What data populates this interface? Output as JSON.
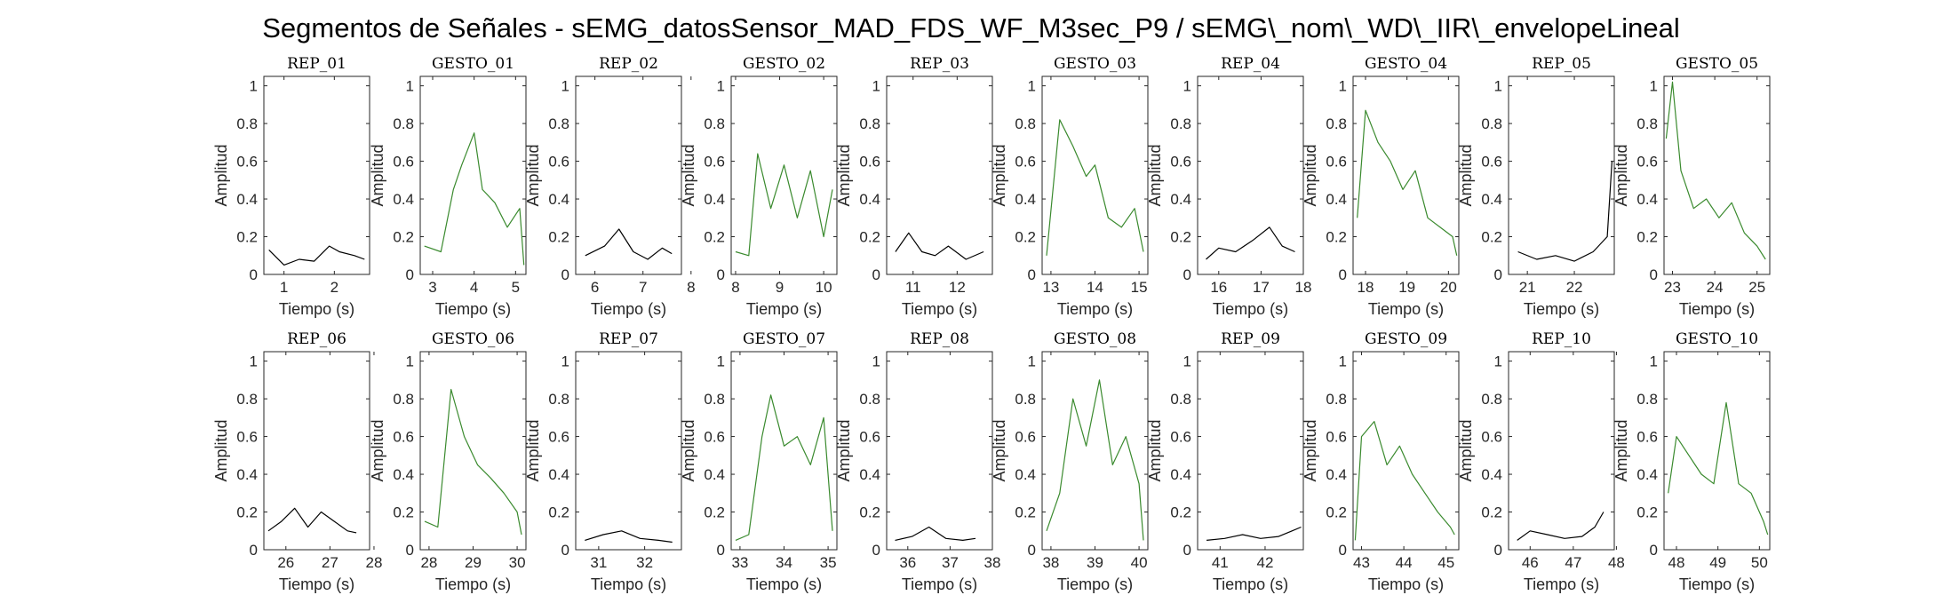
{
  "title": "Segmentos de Señales - sEMG_datosSensor_MAD_FDS_WF_M3sec_P9 / sEMG\\_nom\\_WD\\_IIR\\_envelopeLineal",
  "colors": {
    "rep": "#000000",
    "gesto": "#3a8a2e"
  },
  "chart_data": [
    {
      "title": "REP_01",
      "kind": "rep",
      "type": "line",
      "x": [
        0.7,
        1.0,
        1.3,
        1.6,
        1.9,
        2.1,
        2.4,
        2.6
      ],
      "values": [
        0.13,
        0.05,
        0.08,
        0.07,
        0.15,
        0.12,
        0.1,
        0.08
      ],
      "xlim": [
        0.6,
        2.7
      ],
      "ylim": [
        0,
        1.05
      ],
      "xticks": [
        1,
        2
      ],
      "yticks": [
        0,
        0.2,
        0.4,
        0.6,
        0.8,
        1
      ],
      "xlabel": "Tiempo (s)",
      "ylabel": "Amplitud"
    },
    {
      "title": "GESTO_01",
      "kind": "gesto",
      "type": "line",
      "x": [
        2.8,
        3.2,
        3.5,
        3.7,
        4.0,
        4.2,
        4.5,
        4.8,
        5.1,
        5.2
      ],
      "values": [
        0.15,
        0.12,
        0.45,
        0.58,
        0.75,
        0.45,
        0.38,
        0.25,
        0.35,
        0.05
      ],
      "xlim": [
        2.7,
        5.25
      ],
      "ylim": [
        0,
        1.05
      ],
      "xticks": [
        3,
        4,
        5
      ],
      "yticks": [
        0,
        0.2,
        0.4,
        0.6,
        0.8,
        1
      ],
      "xlabel": "Tiempo (s)",
      "ylabel": "Amplitud"
    },
    {
      "title": "REP_02",
      "kind": "rep",
      "type": "line",
      "x": [
        5.8,
        6.2,
        6.5,
        6.8,
        7.1,
        7.4,
        7.6
      ],
      "values": [
        0.1,
        0.15,
        0.24,
        0.12,
        0.08,
        0.14,
        0.11
      ],
      "xlim": [
        5.6,
        7.8
      ],
      "ylim": [
        0,
        1.05
      ],
      "xticks": [
        6,
        7,
        8
      ],
      "yticks": [
        0,
        0.2,
        0.4,
        0.6,
        0.8,
        1
      ],
      "xlabel": "Tiempo (s)",
      "ylabel": "Amplitud"
    },
    {
      "title": "GESTO_02",
      "kind": "gesto",
      "type": "line",
      "x": [
        8.0,
        8.3,
        8.5,
        8.8,
        9.1,
        9.4,
        9.7,
        10.0,
        10.2
      ],
      "values": [
        0.12,
        0.1,
        0.64,
        0.35,
        0.58,
        0.3,
        0.55,
        0.2,
        0.45
      ],
      "xlim": [
        7.9,
        10.3
      ],
      "ylim": [
        0,
        1.05
      ],
      "xticks": [
        8,
        9,
        10
      ],
      "yticks": [
        0,
        0.2,
        0.4,
        0.6,
        0.8,
        1
      ],
      "xlabel": "Tiempo (s)",
      "ylabel": "Amplitud"
    },
    {
      "title": "REP_03",
      "kind": "rep",
      "type": "line",
      "x": [
        10.6,
        10.9,
        11.2,
        11.5,
        11.8,
        12.2,
        12.6
      ],
      "values": [
        0.12,
        0.22,
        0.12,
        0.1,
        0.15,
        0.08,
        0.12
      ],
      "xlim": [
        10.4,
        12.8
      ],
      "ylim": [
        0,
        1.05
      ],
      "xticks": [
        11,
        12
      ],
      "yticks": [
        0,
        0.2,
        0.4,
        0.6,
        0.8,
        1
      ],
      "xlabel": "Tiempo (s)",
      "ylabel": "Amplitud"
    },
    {
      "title": "GESTO_03",
      "kind": "gesto",
      "type": "line",
      "x": [
        12.9,
        13.2,
        13.5,
        13.8,
        14.0,
        14.3,
        14.6,
        14.9,
        15.1
      ],
      "values": [
        0.1,
        0.82,
        0.68,
        0.52,
        0.58,
        0.3,
        0.25,
        0.35,
        0.12
      ],
      "xlim": [
        12.8,
        15.2
      ],
      "ylim": [
        0,
        1.05
      ],
      "xticks": [
        13,
        14,
        15
      ],
      "yticks": [
        0,
        0.2,
        0.4,
        0.6,
        0.8,
        1
      ],
      "xlabel": "Tiempo (s)",
      "ylabel": "Amplitud"
    },
    {
      "title": "REP_04",
      "kind": "rep",
      "type": "line",
      "x": [
        15.7,
        16.0,
        16.4,
        16.8,
        17.2,
        17.5,
        17.8
      ],
      "values": [
        0.08,
        0.14,
        0.12,
        0.18,
        0.25,
        0.15,
        0.12
      ],
      "xlim": [
        15.5,
        18.0
      ],
      "ylim": [
        0,
        1.05
      ],
      "xticks": [
        16,
        17,
        18
      ],
      "yticks": [
        0,
        0.2,
        0.4,
        0.6,
        0.8,
        1
      ],
      "xlabel": "Tiempo (s)",
      "ylabel": "Amplitud"
    },
    {
      "title": "GESTO_04",
      "kind": "gesto",
      "type": "line",
      "x": [
        17.8,
        18.0,
        18.3,
        18.6,
        18.9,
        19.2,
        19.5,
        19.8,
        20.1,
        20.2
      ],
      "values": [
        0.3,
        0.87,
        0.7,
        0.6,
        0.45,
        0.55,
        0.3,
        0.25,
        0.2,
        0.1
      ],
      "xlim": [
        17.7,
        20.25
      ],
      "ylim": [
        0,
        1.05
      ],
      "xticks": [
        18,
        19,
        20
      ],
      "yticks": [
        0,
        0.2,
        0.4,
        0.6,
        0.8,
        1
      ],
      "xlabel": "Tiempo (s)",
      "ylabel": "Amplitud"
    },
    {
      "title": "REP_05",
      "kind": "rep",
      "type": "line",
      "x": [
        20.8,
        21.2,
        21.6,
        22.0,
        22.4,
        22.7,
        22.8
      ],
      "values": [
        0.12,
        0.08,
        0.1,
        0.07,
        0.12,
        0.2,
        0.6
      ],
      "xlim": [
        20.6,
        22.85
      ],
      "ylim": [
        0,
        1.05
      ],
      "xticks": [
        21,
        22
      ],
      "yticks": [
        0,
        0.2,
        0.4,
        0.6,
        0.8,
        1
      ],
      "xlabel": "Tiempo (s)",
      "ylabel": "Amplitud"
    },
    {
      "title": "GESTO_05",
      "kind": "gesto",
      "type": "line",
      "x": [
        22.85,
        23.0,
        23.2,
        23.5,
        23.8,
        24.1,
        24.4,
        24.7,
        25.0,
        25.2
      ],
      "values": [
        0.72,
        1.02,
        0.55,
        0.35,
        0.4,
        0.3,
        0.38,
        0.22,
        0.15,
        0.08
      ],
      "xlim": [
        22.8,
        25.3
      ],
      "ylim": [
        0,
        1.05
      ],
      "xticks": [
        23,
        24,
        25
      ],
      "yticks": [
        0,
        0.2,
        0.4,
        0.6,
        0.8,
        1
      ],
      "xlabel": "Tiempo (s)",
      "ylabel": "Amplitud"
    },
    {
      "title": "REP_06",
      "kind": "rep",
      "type": "line",
      "x": [
        25.6,
        25.9,
        26.2,
        26.5,
        26.8,
        27.1,
        27.4,
        27.6
      ],
      "values": [
        0.1,
        0.15,
        0.22,
        0.12,
        0.2,
        0.15,
        0.1,
        0.09
      ],
      "xlim": [
        25.5,
        27.9
      ],
      "ylim": [
        0,
        1.05
      ],
      "xticks": [
        26,
        27,
        28
      ],
      "yticks": [
        0,
        0.2,
        0.4,
        0.6,
        0.8,
        1
      ],
      "xlabel": "Tiempo (s)",
      "ylabel": "Amplitud"
    },
    {
      "title": "GESTO_06",
      "kind": "gesto",
      "type": "line",
      "x": [
        27.9,
        28.2,
        28.5,
        28.8,
        29.1,
        29.4,
        29.7,
        30.0,
        30.1
      ],
      "values": [
        0.15,
        0.12,
        0.85,
        0.6,
        0.45,
        0.38,
        0.3,
        0.2,
        0.08
      ],
      "xlim": [
        27.8,
        30.2
      ],
      "ylim": [
        0,
        1.05
      ],
      "xticks": [
        28,
        29,
        30
      ],
      "yticks": [
        0,
        0.2,
        0.4,
        0.6,
        0.8,
        1
      ],
      "xlabel": "Tiempo (s)",
      "ylabel": "Amplitud"
    },
    {
      "title": "REP_07",
      "kind": "rep",
      "type": "line",
      "x": [
        30.7,
        31.1,
        31.5,
        31.9,
        32.3,
        32.6
      ],
      "values": [
        0.05,
        0.08,
        0.1,
        0.06,
        0.05,
        0.04
      ],
      "xlim": [
        30.5,
        32.8
      ],
      "ylim": [
        0,
        1.05
      ],
      "xticks": [
        31,
        32
      ],
      "yticks": [
        0,
        0.2,
        0.4,
        0.6,
        0.8,
        1
      ],
      "xlabel": "Tiempo (s)",
      "ylabel": "Amplitud"
    },
    {
      "title": "GESTO_07",
      "kind": "gesto",
      "type": "line",
      "x": [
        32.9,
        33.2,
        33.5,
        33.7,
        34.0,
        34.3,
        34.6,
        34.9,
        35.1
      ],
      "values": [
        0.05,
        0.08,
        0.6,
        0.82,
        0.55,
        0.6,
        0.45,
        0.7,
        0.1
      ],
      "xlim": [
        32.8,
        35.2
      ],
      "ylim": [
        0,
        1.05
      ],
      "xticks": [
        33,
        34,
        35
      ],
      "yticks": [
        0,
        0.2,
        0.4,
        0.6,
        0.8,
        1
      ],
      "xlabel": "Tiempo (s)",
      "ylabel": "Amplitud"
    },
    {
      "title": "REP_08",
      "kind": "rep",
      "type": "line",
      "x": [
        35.7,
        36.1,
        36.5,
        36.9,
        37.3,
        37.6
      ],
      "values": [
        0.05,
        0.07,
        0.12,
        0.06,
        0.05,
        0.06
      ],
      "xlim": [
        35.5,
        38.0
      ],
      "ylim": [
        0,
        1.05
      ],
      "xticks": [
        36,
        37,
        38
      ],
      "yticks": [
        0,
        0.2,
        0.4,
        0.6,
        0.8,
        1
      ],
      "xlabel": "Tiempo (s)",
      "ylabel": "Amplitud"
    },
    {
      "title": "GESTO_08",
      "kind": "gesto",
      "type": "line",
      "x": [
        37.9,
        38.2,
        38.5,
        38.8,
        39.1,
        39.4,
        39.7,
        40.0,
        40.1
      ],
      "values": [
        0.1,
        0.3,
        0.8,
        0.55,
        0.9,
        0.45,
        0.6,
        0.35,
        0.05
      ],
      "xlim": [
        37.8,
        40.2
      ],
      "ylim": [
        0,
        1.05
      ],
      "xticks": [
        38,
        39,
        40
      ],
      "yticks": [
        0,
        0.2,
        0.4,
        0.6,
        0.8,
        1
      ],
      "xlabel": "Tiempo (s)",
      "ylabel": "Amplitud"
    },
    {
      "title": "REP_09",
      "kind": "rep",
      "type": "line",
      "x": [
        40.7,
        41.1,
        41.5,
        41.9,
        42.3,
        42.6,
        42.8
      ],
      "values": [
        0.05,
        0.06,
        0.08,
        0.06,
        0.07,
        0.1,
        0.12
      ],
      "xlim": [
        40.5,
        42.85
      ],
      "ylim": [
        0,
        1.05
      ],
      "xticks": [
        41,
        42
      ],
      "yticks": [
        0,
        0.2,
        0.4,
        0.6,
        0.8,
        1
      ],
      "xlabel": "Tiempo (s)",
      "ylabel": "Amplitud"
    },
    {
      "title": "GESTO_09",
      "kind": "gesto",
      "type": "line",
      "x": [
        42.85,
        43.0,
        43.3,
        43.6,
        43.9,
        44.2,
        44.5,
        44.8,
        45.1,
        45.2
      ],
      "values": [
        0.05,
        0.6,
        0.68,
        0.45,
        0.55,
        0.4,
        0.3,
        0.2,
        0.12,
        0.08
      ],
      "xlim": [
        42.8,
        45.3
      ],
      "ylim": [
        0,
        1.05
      ],
      "xticks": [
        43,
        44,
        45
      ],
      "yticks": [
        0,
        0.2,
        0.4,
        0.6,
        0.8,
        1
      ],
      "xlabel": "Tiempo (s)",
      "ylabel": "Amplitud"
    },
    {
      "title": "REP_10",
      "kind": "rep",
      "type": "line",
      "x": [
        45.7,
        46.0,
        46.4,
        46.8,
        47.2,
        47.5,
        47.7
      ],
      "values": [
        0.05,
        0.1,
        0.08,
        0.06,
        0.07,
        0.12,
        0.2
      ],
      "xlim": [
        45.5,
        47.95
      ],
      "ylim": [
        0,
        1.05
      ],
      "xticks": [
        46,
        47,
        48
      ],
      "yticks": [
        0,
        0.2,
        0.4,
        0.6,
        0.8,
        1
      ],
      "xlabel": "Tiempo (s)",
      "ylabel": "Amplitud"
    },
    {
      "title": "GESTO_10",
      "kind": "gesto",
      "type": "line",
      "x": [
        47.8,
        48.0,
        48.3,
        48.6,
        48.9,
        49.2,
        49.5,
        49.8,
        50.1,
        50.2
      ],
      "values": [
        0.3,
        0.6,
        0.5,
        0.4,
        0.35,
        0.78,
        0.35,
        0.3,
        0.15,
        0.08
      ],
      "xlim": [
        47.7,
        50.25
      ],
      "ylim": [
        0,
        1.05
      ],
      "xticks": [
        48,
        49,
        50
      ],
      "yticks": [
        0,
        0.2,
        0.4,
        0.6,
        0.8,
        1
      ],
      "xlabel": "Tiempo (s)",
      "ylabel": "Amplitud"
    }
  ]
}
